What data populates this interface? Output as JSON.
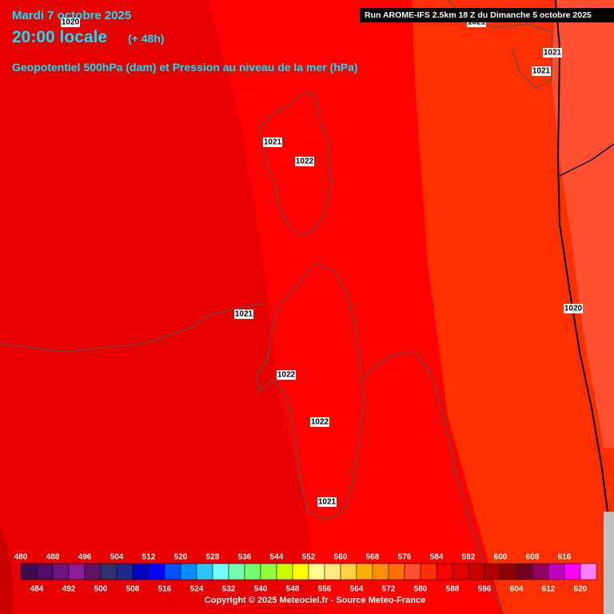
{
  "header": {
    "date": "Mardi 7 octobre 2025",
    "time": "20:00 locale",
    "lead": "(+ 48h)",
    "field": "Geopotentiel 500hPa (dam) et Pression au niveau de la mer (hPa)",
    "run": "Run AROME-IFS 2.5km 18 Z du Dimanche 5 octobre 2025"
  },
  "isobar_labels": [
    1020,
    1021,
    1021,
    1021,
    1021,
    1022,
    1021,
    1022,
    1022,
    1021,
    1020
  ],
  "colorbar": {
    "levels": [
      480,
      484,
      488,
      492,
      496,
      500,
      504,
      508,
      512,
      516,
      520,
      524,
      528,
      532,
      536,
      540,
      544,
      548,
      552,
      556,
      560,
      564,
      568,
      572,
      576,
      580,
      584,
      588,
      592,
      596,
      600,
      604,
      608,
      612,
      616,
      620
    ],
    "colors": [
      "#3c0a50",
      "#4e0c66",
      "#6c1480",
      "#8a1c94",
      "#5c1466",
      "#303070",
      "#1c2a90",
      "#0000c0",
      "#0000ff",
      "#0050ff",
      "#0090ff",
      "#28c8ff",
      "#70ffff",
      "#70ffb0",
      "#70ff70",
      "#90ff40",
      "#c8ff00",
      "#ffff00",
      "#ffff90",
      "#ffe880",
      "#ffd040",
      "#ffb000",
      "#ff9000",
      "#ff7000",
      "#ff5030",
      "#ff3000",
      "#ff0000",
      "#e00000",
      "#c80000",
      "#b00000",
      "#900000",
      "#700020",
      "#900060",
      "#c000c0",
      "#ff00ff",
      "#ff80ff"
    ]
  },
  "footer": {
    "copyright": "Copyright © 2025 Meteociel.fr - Source Meteo-France"
  }
}
